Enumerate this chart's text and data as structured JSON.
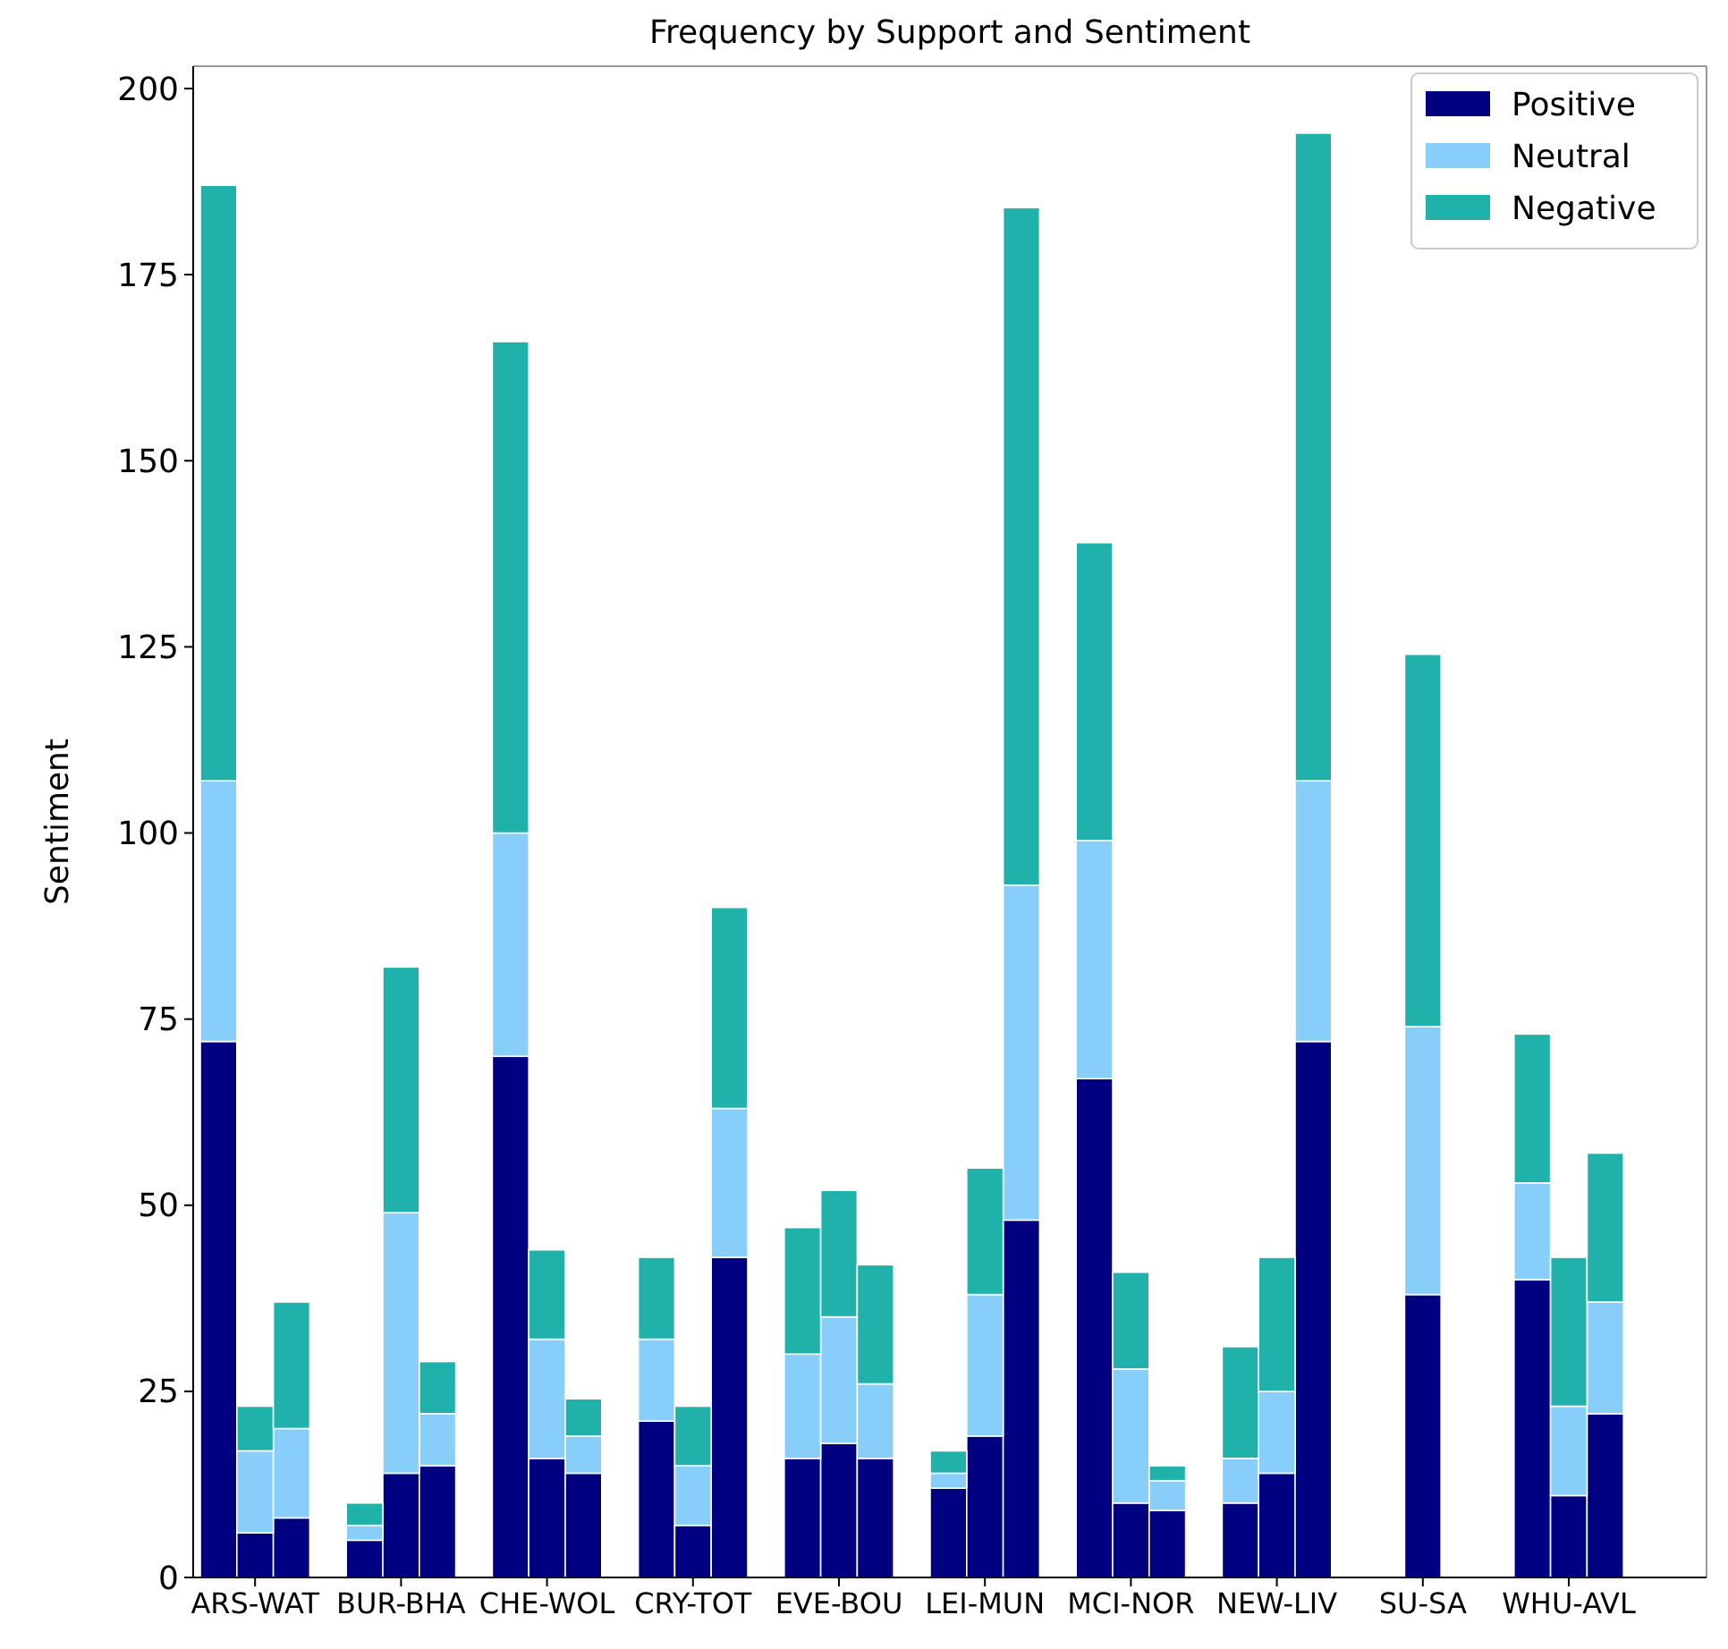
{
  "chart_data": {
    "type": "bar",
    "title": "Frequency by Support and Sentiment",
    "ylabel": "Sentiment",
    "stacked": true,
    "legend": "top right",
    "grid": false,
    "categories": [
      null,
      "ARS-WAT",
      null,
      null,
      null,
      "BUR-BHA",
      null,
      null,
      null,
      "CHE-WOL",
      null,
      null,
      null,
      "CRY-TOT",
      null,
      null,
      null,
      "EVE-BOU",
      null,
      null,
      null,
      "LEI-MUN",
      null,
      null,
      null,
      "MCI-NOR",
      null,
      null,
      null,
      "NEW-LIV",
      null,
      null,
      null,
      "SU-SA",
      null,
      null,
      null,
      "WHU-AVL",
      null,
      null
    ],
    "ylim": [
      0,
      203
    ],
    "yticks": [
      0,
      25,
      50,
      75,
      100,
      125,
      150,
      175,
      200
    ],
    "series": [
      {
        "name": "Positive",
        "color": "#000080",
        "values": [
          72,
          6,
          8,
          null,
          5,
          14,
          15,
          null,
          70,
          16,
          14,
          null,
          21,
          7,
          43,
          null,
          16,
          18,
          16,
          null,
          12,
          19,
          48,
          null,
          67,
          10,
          9,
          null,
          10,
          14,
          72,
          null,
          null,
          38,
          null,
          null,
          40,
          11,
          22,
          null
        ]
      },
      {
        "name": "Neutral",
        "color": "#87cefa",
        "values": [
          35,
          11,
          12,
          null,
          2,
          35,
          7,
          null,
          30,
          16,
          5,
          null,
          11,
          8,
          20,
          null,
          14,
          17,
          10,
          null,
          2,
          19,
          45,
          null,
          32,
          18,
          4,
          null,
          6,
          11,
          35,
          null,
          null,
          36,
          null,
          null,
          13,
          12,
          15,
          null
        ]
      },
      {
        "name": "Negative",
        "color": "#20b2aa",
        "values": [
          80,
          6,
          17,
          null,
          3,
          33,
          7,
          null,
          66,
          12,
          5,
          null,
          11,
          8,
          27,
          null,
          17,
          17,
          16,
          null,
          3,
          17,
          91,
          null,
          40,
          13,
          2,
          null,
          15,
          18,
          87,
          null,
          null,
          50,
          null,
          null,
          20,
          20,
          20,
          null
        ]
      }
    ]
  }
}
